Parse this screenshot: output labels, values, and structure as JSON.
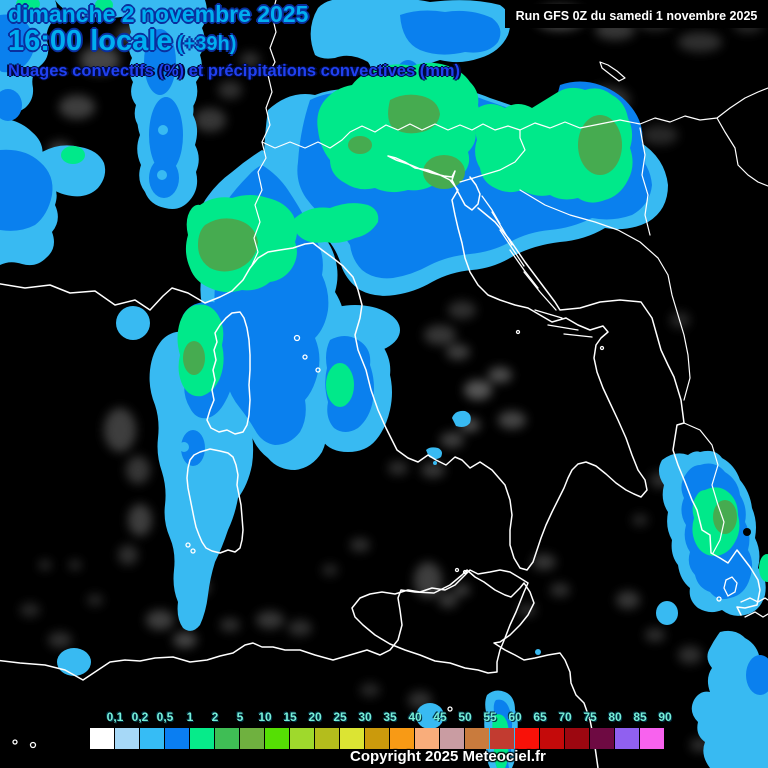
{
  "header": {
    "date_line": "dimanche 2 novembre 2025",
    "time_line": "16:00 locale",
    "forecast_offset": "(+39h)",
    "subtitle": "Nuages convectifs (%) et précipitations convectives (mm)",
    "run_info": "Run GFS 0Z du samedi 1 novembre 2025"
  },
  "legend": {
    "ticks": [
      "0,1",
      "0,2",
      "0,5",
      "1",
      "2",
      "5",
      "10",
      "15",
      "20",
      "25",
      "30",
      "35",
      "40",
      "45",
      "50",
      "55",
      "60",
      "65",
      "70",
      "75",
      "80",
      "85",
      "90"
    ],
    "colors": [
      "#ffffff",
      "#a6d8f7",
      "#36bcf5",
      "#0a7ef2",
      "#06eb8a",
      "#3fbe55",
      "#6fb13f",
      "#55df04",
      "#9fd92c",
      "#b4bd1c",
      "#dce433",
      "#cb9a0c",
      "#f89a15",
      "#f9ad7b",
      "#c99ca2",
      "#c97b3d",
      "#c23b30",
      "#f91108",
      "#c40a0a",
      "#9c0710",
      "#6e0a42",
      "#9060f0",
      "#f862ee"
    ]
  },
  "map_colors": {
    "background": "#000000",
    "coastline": "#ffffff",
    "cloud_gray": "#8a8a8a",
    "precip_light": "#38baf2",
    "precip_medium": "#0a80ee",
    "precip_strong": "#00e98a",
    "precip_core": "#46ab50"
  },
  "footer": {
    "copyright": "Copyright 2025 Meteociel.fr"
  }
}
